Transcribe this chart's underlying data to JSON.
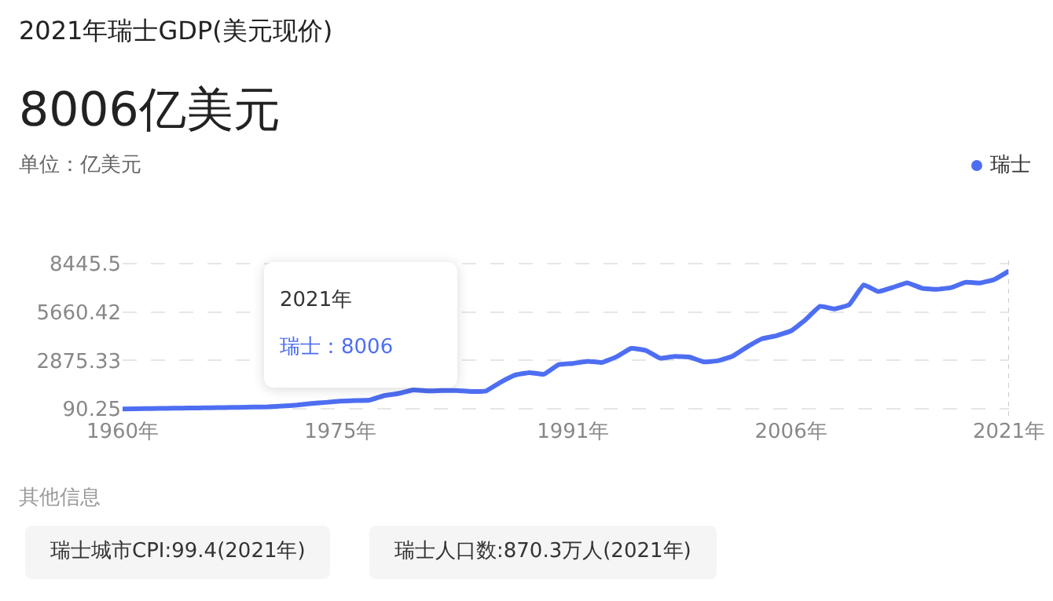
{
  "chart_data": {
    "type": "line",
    "title": "2021年瑞士GDP(美元现价)",
    "subtitle": "8006亿美元",
    "ylabel": "单位：亿美元",
    "x": [
      1960,
      1961,
      1962,
      1963,
      1964,
      1965,
      1966,
      1967,
      1968,
      1969,
      1970,
      1971,
      1972,
      1973,
      1974,
      1975,
      1976,
      1977,
      1978,
      1979,
      1980,
      1981,
      1982,
      1983,
      1984,
      1985,
      1986,
      1987,
      1988,
      1989,
      1990,
      1991,
      1992,
      1993,
      1994,
      1995,
      1996,
      1997,
      1998,
      1999,
      2000,
      2001,
      2002,
      2003,
      2004,
      2005,
      2006,
      2007,
      2008,
      2009,
      2010,
      2011,
      2012,
      2013,
      2014,
      2015,
      2016,
      2017,
      2018,
      2019,
      2020,
      2021
    ],
    "series": [
      {
        "name": "瑞士",
        "color": "#4e6ef2",
        "values": [
          95,
          107,
          118,
          129,
          141,
          151,
          162,
          173,
          186,
          202,
          220,
          261,
          317,
          406,
          470,
          540,
          575,
          601,
          861,
          980,
          1187,
          1127,
          1153,
          1147,
          1096,
          1125,
          1622,
          2034,
          2179,
          2088,
          2637,
          2705,
          2827,
          2764,
          3092,
          3572,
          3454,
          3004,
          3114,
          3077,
          2793,
          2865,
          3132,
          3665,
          4121,
          4299,
          4571,
          5213,
          5979,
          5832,
          6072,
          7207,
          6827,
          7064,
          7333,
          7021,
          6955,
          7049,
          7356,
          7322,
          7522,
          8006
        ]
      }
    ],
    "xlim": [
      1960,
      2021
    ],
    "xticks": [
      {
        "value": 1960,
        "label": "1960年"
      },
      {
        "value": 1975,
        "label": "1975年"
      },
      {
        "value": 1991,
        "label": "1991年"
      },
      {
        "value": 2006,
        "label": "2006年"
      },
      {
        "value": 2021,
        "label": "2021年"
      }
    ],
    "ylim": [
      -300,
      8700
    ],
    "yticks": [
      90.25,
      2875.33,
      5660.42,
      8445.5
    ],
    "grid": "y",
    "legend": "top right",
    "marker": "none",
    "line_style": "solid",
    "ref_lines": [
      {
        "axis": "x",
        "value": 2021,
        "color": "#cccccc",
        "line_style": "dotted"
      }
    ],
    "annotations": [
      "2021年",
      "瑞士：8006",
      "其他信息",
      "瑞士城市CPI:99.4(2021年)",
      "瑞士人口数:870.3万人(2021年)"
    ]
  }
}
